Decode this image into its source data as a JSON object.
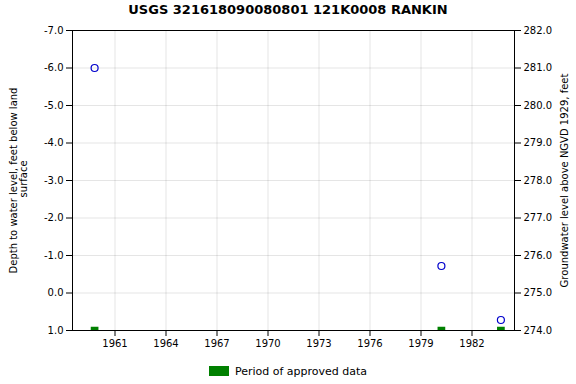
{
  "chart_data": {
    "type": "scatter",
    "title": "USGS 321618090080801 121K0008  RANKIN",
    "y_label": "Depth to water level, feet below land\n surface",
    "y2_label": "Groundwater level above NGVD 1929, feet",
    "xlim": [
      1958.5,
      1984.5
    ],
    "xticks": [
      1961,
      1964,
      1967,
      1970,
      1973,
      1976,
      1979,
      1982
    ],
    "ylim": [
      1.0,
      -7.0
    ],
    "yticks": [
      {
        "value": -7.0,
        "label": "-7.0"
      },
      {
        "value": -6.0,
        "label": "-6.0"
      },
      {
        "value": -5.0,
        "label": "-5.0"
      },
      {
        "value": -4.0,
        "label": "-4.0"
      },
      {
        "value": -3.0,
        "label": "-3.0"
      },
      {
        "value": -2.0,
        "label": "-2.0"
      },
      {
        "value": -1.0,
        "label": "-1.0"
      },
      {
        "value": 0.0,
        "label": "0.0"
      },
      {
        "value": 1.0,
        "label": "1.0"
      }
    ],
    "y2lim": [
      274.0,
      282.0
    ],
    "y2ticks": [
      {
        "value": 274.0,
        "label": "274.0"
      },
      {
        "value": 275.0,
        "label": "275.0"
      },
      {
        "value": 276.0,
        "label": "276.0"
      },
      {
        "value": 277.0,
        "label": "277.0"
      },
      {
        "value": 278.0,
        "label": "278.0"
      },
      {
        "value": 279.0,
        "label": "279.0"
      },
      {
        "value": 280.0,
        "label": "280.0"
      },
      {
        "value": 281.0,
        "label": "281.0"
      },
      {
        "value": 282.0,
        "label": "282.0"
      }
    ],
    "grid": true,
    "legend": "bottom",
    "series": [
      {
        "x": [
          1959.8,
          1980.2,
          1983.7
        ],
        "values": [
          -6.0,
          -0.72,
          0.72
        ],
        "color": "#0000cc",
        "marker": "circle"
      },
      {
        "name": "Period of approved data",
        "x": [
          1959.8,
          1980.2,
          1983.7
        ],
        "values": [
          1.0,
          1.0,
          1.0
        ],
        "color": "#008000",
        "marker": "square"
      }
    ]
  }
}
